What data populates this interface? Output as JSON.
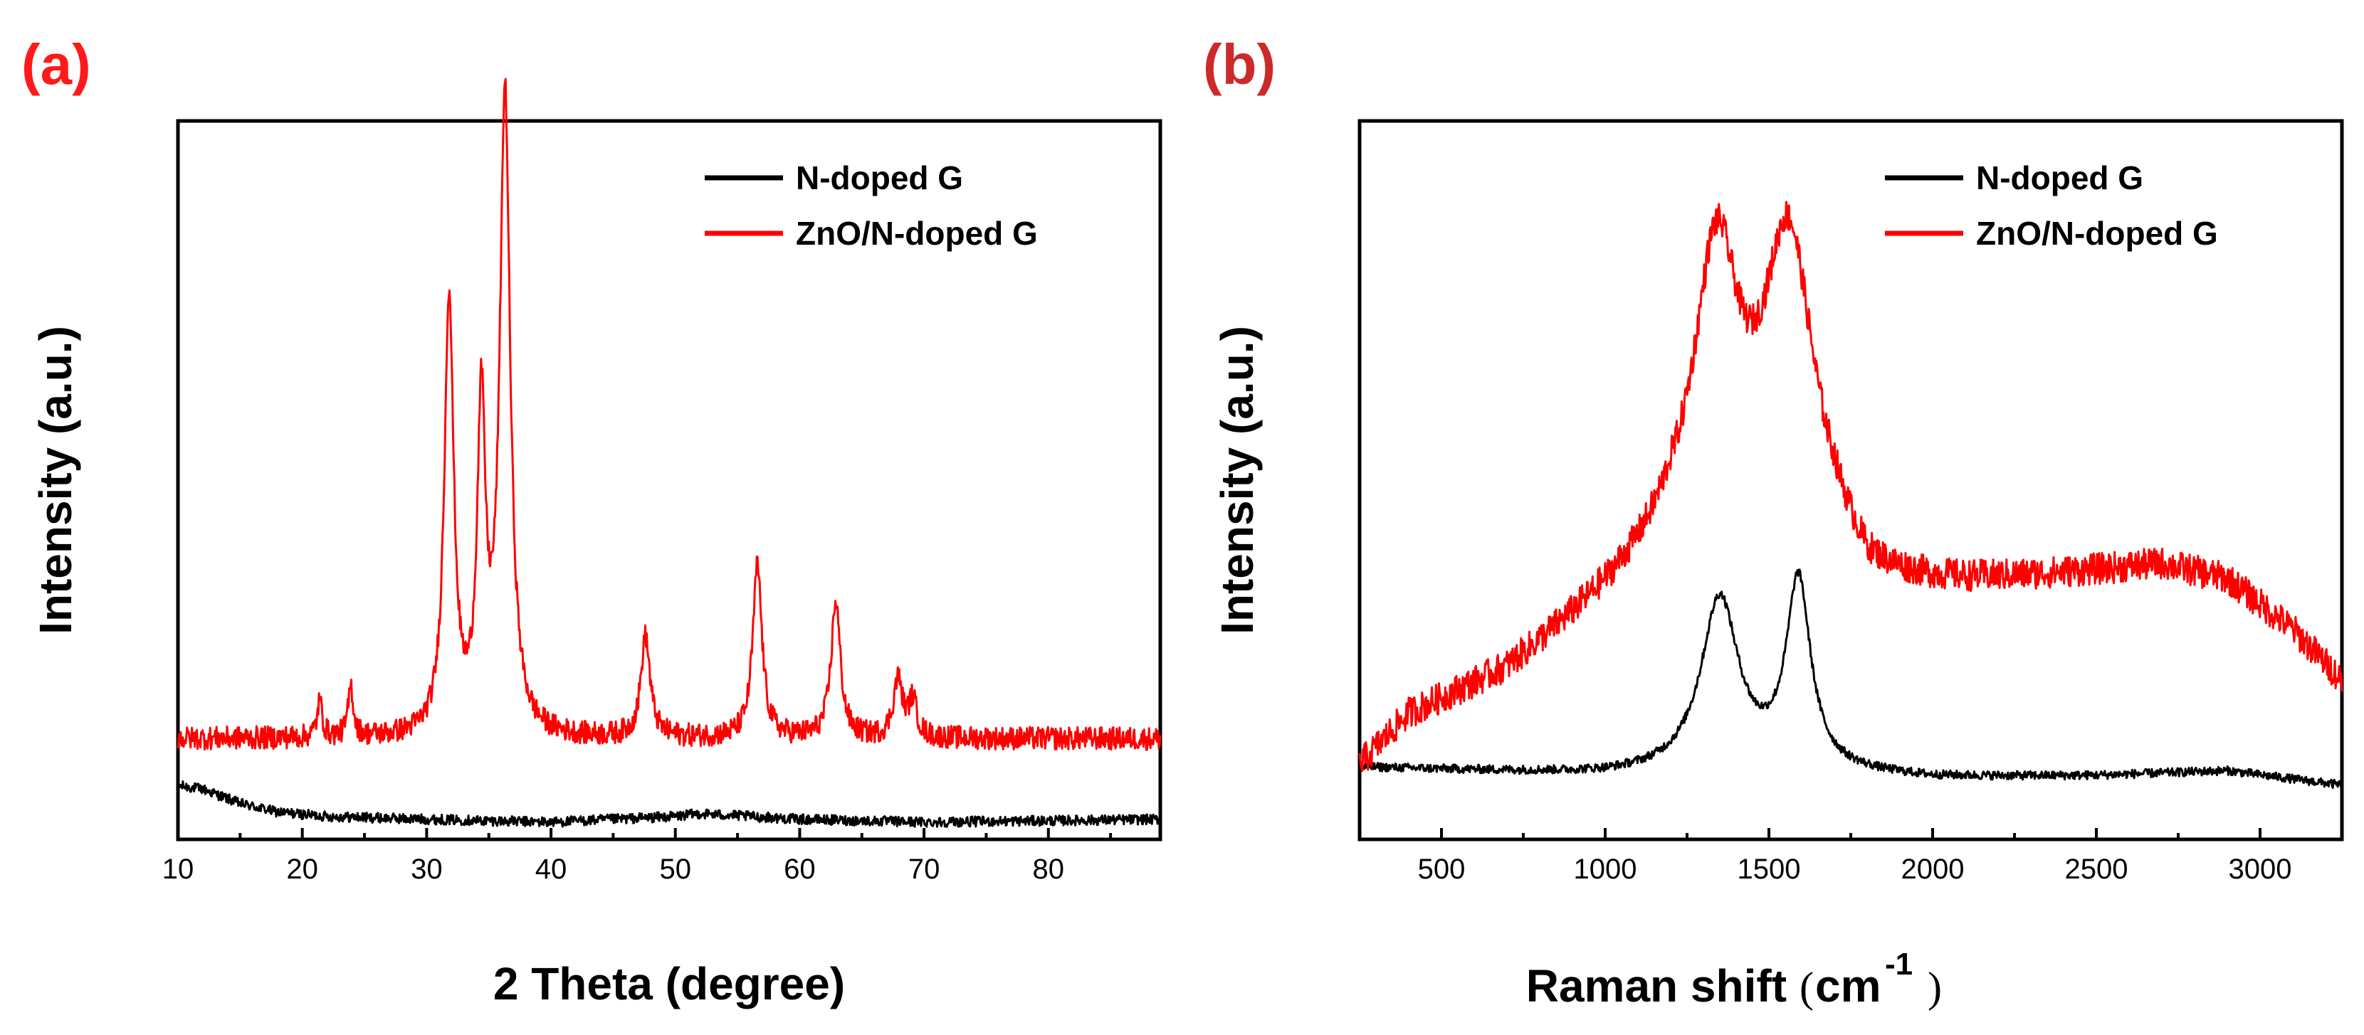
{
  "chart_data": [
    {
      "type": "line",
      "panel_label": "(a)",
      "xlabel": "2 Theta (degree)",
      "ylabel": "Intensity (a.u.)",
      "xlim": [
        10,
        89
      ],
      "ylim": [
        0,
        100
      ],
      "xticks": [
        10,
        20,
        30,
        40,
        50,
        60,
        70,
        80
      ],
      "yticks": [],
      "grid": false,
      "legend_position": "top-right",
      "series": [
        {
          "name": "N-doped G",
          "color": "#000000",
          "baseline": {
            "x": [
              10,
              12,
              15,
              18,
              22,
              30,
              40,
              50,
              52,
              60,
              70,
              80,
              89
            ],
            "y": [
              7.5,
              7.0,
              5.0,
              3.8,
              3.2,
              2.8,
              2.4,
              3.2,
              3.6,
              2.8,
              2.4,
              2.6,
              2.8
            ]
          },
          "peaks": [],
          "noise": 0.7
        },
        {
          "name": "ZnO/N-doped G",
          "color": "#ff0000",
          "baseline": {
            "x": [
              10,
              89
            ],
            "y": [
              14,
              14
            ]
          },
          "peaks": [
            {
              "x": 21.4,
              "height": 5,
              "width": 0.25
            },
            {
              "x": 23.9,
              "height": 7,
              "width": 0.25
            },
            {
              "x": 31.8,
              "height": 61,
              "width": 0.45
            },
            {
              "x": 34.4,
              "height": 44,
              "width": 0.4
            },
            {
              "x": 36.3,
              "height": 89,
              "width": 0.5
            },
            {
              "x": 47.6,
              "height": 14,
              "width": 0.45
            },
            {
              "x": 56.6,
              "height": 24,
              "width": 0.45
            },
            {
              "x": 62.9,
              "height": 19,
              "width": 0.45
            },
            {
              "x": 67.9,
              "height": 8,
              "width": 0.45
            },
            {
              "x": 69.1,
              "height": 5,
              "width": 0.4
            }
          ],
          "noise": 1.6
        }
      ]
    },
    {
      "type": "line",
      "panel_label": "(b)",
      "xlabel": "Raman shift",
      "xlabel_unit": "cm",
      "xlabel_exponent": "-1",
      "ylabel": "Intensity (a.u.)",
      "xlim": [
        250,
        3250
      ],
      "ylim": [
        0,
        100
      ],
      "xticks": [
        500,
        1000,
        1500,
        2000,
        2500,
        3000
      ],
      "yticks": [],
      "grid": false,
      "legend_position": "top-right",
      "series": [
        {
          "name": "N-doped G",
          "color": "#000000",
          "baseline": {
            "x": [
              250,
              1000,
              1500,
              2000,
              2500,
              2900,
              3250
            ],
            "y": [
              10,
              9,
              9.5,
              8.5,
              8.8,
              9.5,
              7.5
            ]
          },
          "peaks": [
            {
              "x": 1350,
              "height": 24,
              "width": 70
            },
            {
              "x": 1590,
              "height": 26,
              "width": 45
            }
          ],
          "noise": 0.6
        },
        {
          "name": "ZnO/N-doped G",
          "color": "#ff0000",
          "baseline": {
            "x": [
              250,
              400,
              700,
              1000,
              1200,
              1700,
              1800,
              2100,
              2500,
              2700,
              2900,
              3100,
              3250
            ],
            "y": [
              10,
              17,
              23,
              33,
              40,
              38,
              34,
              35,
              37,
              38,
              36,
              29,
              22
            ]
          },
          "peaks": [
            {
              "x": 1340,
              "height": 40,
              "width": 85
            },
            {
              "x": 1560,
              "height": 43,
              "width": 95
            }
          ],
          "noise": 2.2
        }
      ]
    }
  ]
}
